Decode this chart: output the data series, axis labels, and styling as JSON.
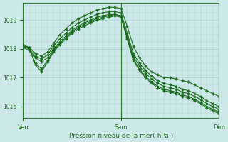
{
  "xlabel": "Pression niveau de la mer( hPa )",
  "bg_color": "#cde8e8",
  "line_color": "#1a6b1a",
  "grid_color": "#a8cccc",
  "axis_color": "#2a7a2a",
  "tick_color": "#1a6b1a",
  "label_color": "#1a6b1a",
  "ylim": [
    1015.6,
    1019.6
  ],
  "yticks": [
    1016,
    1017,
    1018,
    1019
  ],
  "xtick_labels": [
    "Ven",
    "Sam",
    "Dim"
  ],
  "xtick_positions": [
    0,
    16,
    32
  ],
  "total_points": 33,
  "series": [
    [
      1018.1,
      1018.05,
      1017.85,
      1017.75,
      1017.9,
      1018.2,
      1018.5,
      1018.7,
      1018.9,
      1019.05,
      1019.15,
      1019.25,
      1019.35,
      1019.4,
      1019.45,
      1019.45,
      1019.4,
      1018.8,
      1018.1,
      1017.7,
      1017.4,
      1017.2,
      1017.1,
      1017.0,
      1017.0,
      1016.95,
      1016.9,
      1016.85,
      1016.75,
      1016.65,
      1016.55,
      1016.45,
      1016.35
    ],
    [
      1018.1,
      1018.0,
      1017.75,
      1017.65,
      1017.8,
      1018.1,
      1018.35,
      1018.55,
      1018.75,
      1018.9,
      1019.0,
      1019.1,
      1019.2,
      1019.25,
      1019.3,
      1019.3,
      1019.25,
      1018.55,
      1017.85,
      1017.5,
      1017.25,
      1017.05,
      1016.9,
      1016.8,
      1016.75,
      1016.7,
      1016.6,
      1016.55,
      1016.45,
      1016.35,
      1016.2,
      1016.1,
      1016.0
    ],
    [
      1018.05,
      1017.95,
      1017.7,
      1017.55,
      1017.7,
      1018.0,
      1018.25,
      1018.45,
      1018.65,
      1018.8,
      1018.9,
      1019.0,
      1019.1,
      1019.15,
      1019.2,
      1019.2,
      1019.15,
      1018.45,
      1017.75,
      1017.4,
      1017.15,
      1016.95,
      1016.8,
      1016.7,
      1016.65,
      1016.6,
      1016.5,
      1016.45,
      1016.35,
      1016.25,
      1016.1,
      1016.0,
      1015.9
    ],
    [
      1018.1,
      1018.0,
      1017.5,
      1017.3,
      1017.6,
      1017.95,
      1018.2,
      1018.4,
      1018.6,
      1018.75,
      1018.85,
      1018.95,
      1019.05,
      1019.1,
      1019.15,
      1019.2,
      1019.15,
      1018.4,
      1017.65,
      1017.3,
      1017.05,
      1016.85,
      1016.7,
      1016.6,
      1016.55,
      1016.5,
      1016.4,
      1016.35,
      1016.25,
      1016.15,
      1016.0,
      1015.9,
      1015.8
    ],
    [
      1018.15,
      1018.05,
      1017.45,
      1017.2,
      1017.55,
      1017.9,
      1018.15,
      1018.35,
      1018.55,
      1018.7,
      1018.8,
      1018.9,
      1019.0,
      1019.05,
      1019.1,
      1019.15,
      1019.1,
      1018.35,
      1017.6,
      1017.25,
      1017.0,
      1016.8,
      1016.65,
      1016.55,
      1016.5,
      1016.45,
      1016.35,
      1016.3,
      1016.2,
      1016.1,
      1015.95,
      1015.85,
      1015.75
    ]
  ],
  "marker": "D",
  "marker_size": 2.0,
  "line_width": 0.8
}
